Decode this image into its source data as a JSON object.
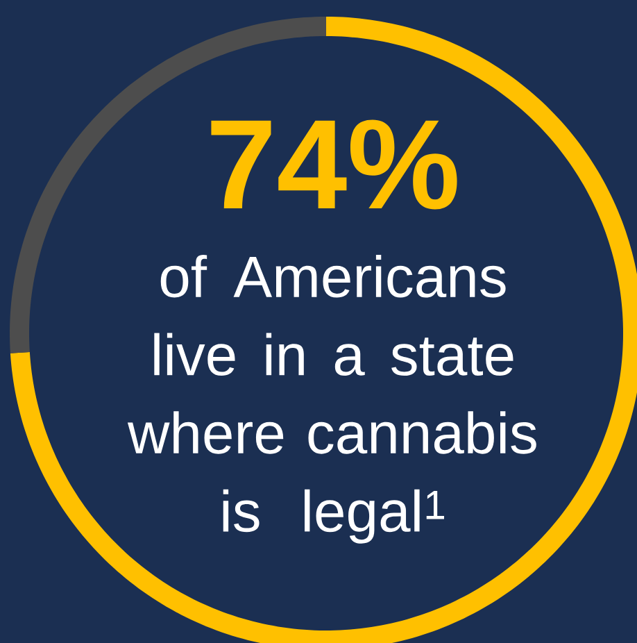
{
  "chart_data": {
    "type": "donut",
    "title": "74%",
    "subtitle": "of Americans live in a state where cannabis is legal$^{1}$",
    "categories": [
      null,
      null
    ],
    "values": [
      74,
      26
    ],
    "colors": [
      "#ffc000",
      "#4d4d4d"
    ]
  }
}
